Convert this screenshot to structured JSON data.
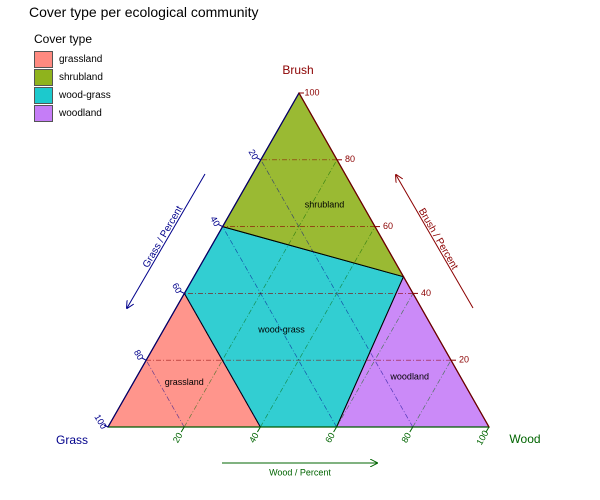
{
  "chart_data": {
    "type": "ternary",
    "title": "Cover type per ecological community",
    "legend": {
      "title": "Cover type",
      "placement": "top-left",
      "items": [
        {
          "name": "grassland",
          "color": "#ff8a80"
        },
        {
          "name": "shrubland",
          "color": "#8fb31d"
        },
        {
          "name": "wood-grass",
          "color": "#1cc9cd"
        },
        {
          "name": "woodland",
          "color": "#c57df7"
        }
      ]
    },
    "axes": {
      "brush": {
        "vertex_label": "Brush",
        "arrow_label": "Brush / Percent",
        "color": "#8b0000",
        "ticks": [
          "20",
          "40",
          "60",
          "80",
          "100"
        ]
      },
      "grass": {
        "vertex_label": "Grass",
        "arrow_label": "Grass / Percent",
        "color": "#00008b",
        "ticks": [
          "20",
          "40",
          "60",
          "80",
          "100"
        ]
      },
      "wood": {
        "vertex_label": "Wood",
        "arrow_label": "Wood / Percent",
        "color": "#006400",
        "ticks": [
          "20",
          "40",
          "60",
          "80",
          "100"
        ]
      },
      "range": [
        0,
        100
      ],
      "grid": true
    },
    "regions": [
      {
        "name": "grassland",
        "label": "grassland",
        "vertices": [
          {
            "grass": 100,
            "wood": 0,
            "brush": 0
          },
          {
            "grass": 60,
            "wood": 40,
            "brush": 0
          },
          {
            "grass": 60,
            "wood": 0,
            "brush": 40
          }
        ]
      },
      {
        "name": "wood-grass",
        "label": "wood-grass",
        "vertices": [
          {
            "grass": 60,
            "wood": 40,
            "brush": 0
          },
          {
            "grass": 40,
            "wood": 60,
            "brush": 0
          },
          {
            "grass": 0,
            "wood": 55,
            "brush": 45
          },
          {
            "grass": 40,
            "wood": 0,
            "brush": 60
          },
          {
            "grass": 60,
            "wood": 0,
            "brush": 40
          }
        ]
      },
      {
        "name": "shrubland",
        "label": "shrubland",
        "vertices": [
          {
            "grass": 0,
            "wood": 0,
            "brush": 100
          },
          {
            "grass": 0,
            "wood": 39,
            "brush": 61
          },
          {
            "grass": 0,
            "wood": 55,
            "brush": 45
          },
          {
            "grass": 40,
            "wood": 0,
            "brush": 60
          }
        ]
      },
      {
        "name": "woodland",
        "label": "woodland",
        "vertices": [
          {
            "grass": 0,
            "wood": 100,
            "brush": 0
          },
          {
            "grass": 40,
            "wood": 60,
            "brush": 0
          },
          {
            "grass": 0,
            "wood": 55,
            "brush": 45
          }
        ]
      }
    ]
  }
}
